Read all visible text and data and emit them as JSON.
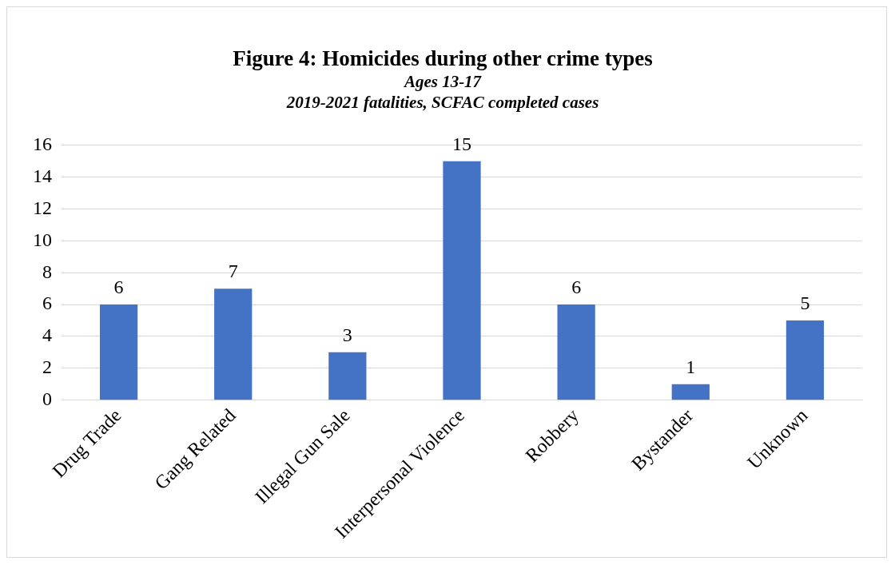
{
  "chart_data": {
    "type": "bar",
    "title": "Figure 4: Homicides during other crime types",
    "subtitle": "Ages 13-17\n2019-2021 fatalities, SCFAC completed cases",
    "categories": [
      "Drug Trade",
      "Gang Related",
      "Illegal Gun Sale",
      "Interpersonal Violence",
      "Robbery",
      "Bystander",
      "Unknown"
    ],
    "values": [
      6,
      7,
      3,
      15,
      6,
      1,
      5
    ],
    "color": "#4472c4",
    "ylim": [
      0,
      16
    ],
    "yticks": [
      0,
      2,
      4,
      6,
      8,
      10,
      12,
      14,
      16
    ],
    "grid": "y",
    "data_labels": true,
    "legend": false
  }
}
